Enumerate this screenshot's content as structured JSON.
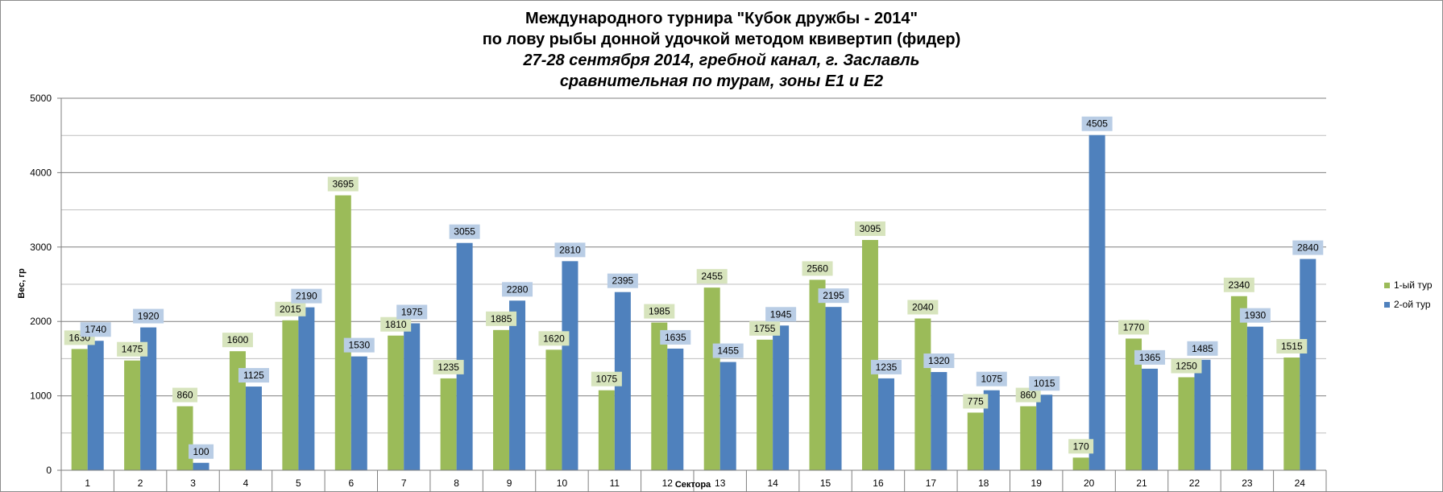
{
  "chart_data": {
    "type": "bar",
    "title_lines": [
      "Международного турнира \"Кубок дружбы - 2014\"",
      "по лову рыбы донной удочкой методом квивертип (фидер)",
      "27-28 сентября 2014, гребной канал, г. Заславль",
      "сравнительная по турам, зоны Е1 и Е2"
    ],
    "xlabel": "Сектора",
    "ylabel": "Вес, гр",
    "ylim": [
      0,
      5000
    ],
    "yticks": [
      0,
      1000,
      2000,
      3000,
      4000,
      5000
    ],
    "grid": true,
    "legend_position": "right",
    "categories": [
      "1",
      "2",
      "3",
      "4",
      "5",
      "6",
      "7",
      "8",
      "9",
      "10",
      "11",
      "12",
      "13",
      "14",
      "15",
      "16",
      "17",
      "18",
      "19",
      "20",
      "21",
      "22",
      "23",
      "24"
    ],
    "series": [
      {
        "name": "1-ый тур",
        "color": "#9bbb59",
        "label_bg": "#d7e4bd",
        "values": [
          1630,
          1475,
          860,
          1600,
          2015,
          3695,
          1810,
          1235,
          1885,
          1620,
          1075,
          1985,
          2455,
          1755,
          2560,
          3095,
          2040,
          775,
          860,
          170,
          1770,
          1250,
          2340,
          1515
        ]
      },
      {
        "name": "2-ой тур",
        "color": "#4f81bd",
        "label_bg": "#b9cde5",
        "values": [
          1740,
          1920,
          100,
          1125,
          2190,
          1530,
          1975,
          3055,
          2280,
          2810,
          2395,
          1635,
          1455,
          1945,
          2195,
          1235,
          1320,
          1075,
          1015,
          4505,
          1365,
          1485,
          1930,
          2840
        ]
      }
    ]
  }
}
